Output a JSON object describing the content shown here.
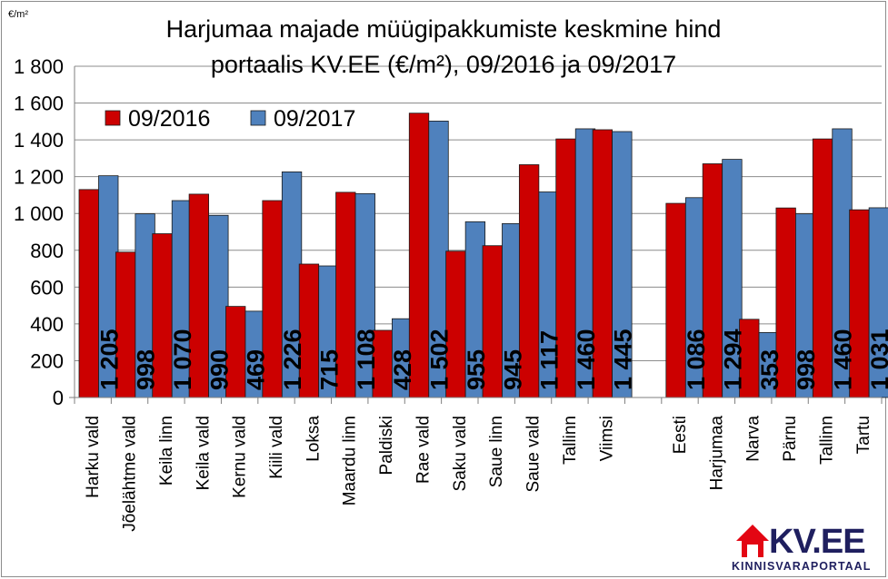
{
  "chart_data": {
    "type": "bar",
    "title": [
      "Harjumaa majade müügipakkumiste keskmine hind",
      "portaalis KV.EE (€/m²), 09/2016 ja 09/2017"
    ],
    "ylabel": "€/m²",
    "ylim": [
      0,
      1800
    ],
    "ytick_step": 200,
    "yticks": [
      "0",
      "200",
      "400",
      "600",
      "800",
      "1 000",
      "1 200",
      "1 400",
      "1 600",
      "1 800"
    ],
    "grid": true,
    "legend_position": "top-left",
    "categories": [
      "Harku vald",
      "Jõelähtme vald",
      "Keila linn",
      "Keila vald",
      "Kernu vald",
      "Kiili vald",
      "Loksa",
      "Maardu linn",
      "Paldiski",
      "Rae vald",
      "Saku vald",
      "Saue linn",
      "Saue vald",
      "Tallinn",
      "Viimsi",
      "",
      "Eesti",
      "Harjumaa",
      "Narva",
      "Pärnu",
      "Tallinn",
      "Tartu"
    ],
    "series": [
      {
        "name": "09/2016",
        "color": "#cc0000",
        "values": [
          1130,
          790,
          890,
          1105,
          495,
          1070,
          725,
          1115,
          365,
          1545,
          795,
          825,
          1265,
          1405,
          1455,
          null,
          1055,
          1270,
          425,
          1030,
          1405,
          1020
        ]
      },
      {
        "name": "09/2017",
        "color": "#4f81bd",
        "values": [
          1205,
          998,
          1070,
          990,
          469,
          1226,
          715,
          1108,
          428,
          1502,
          955,
          945,
          1117,
          1460,
          1445,
          null,
          1086,
          1294,
          353,
          998,
          1460,
          1031
        ]
      }
    ],
    "data_labels": [
      "1 205",
      "998",
      "1 070",
      "990",
      "469",
      "1 226",
      "715",
      "1 108",
      "428",
      "1 502",
      "955",
      "945",
      "1 117",
      "1 460",
      "1 445",
      "",
      "1 086",
      "1 294",
      "353",
      "998",
      "1 460",
      "1 031"
    ]
  },
  "logo": {
    "brand": "KV.EE",
    "tagline": "KINNISVARAPORTAAL",
    "color": "#e30613"
  }
}
